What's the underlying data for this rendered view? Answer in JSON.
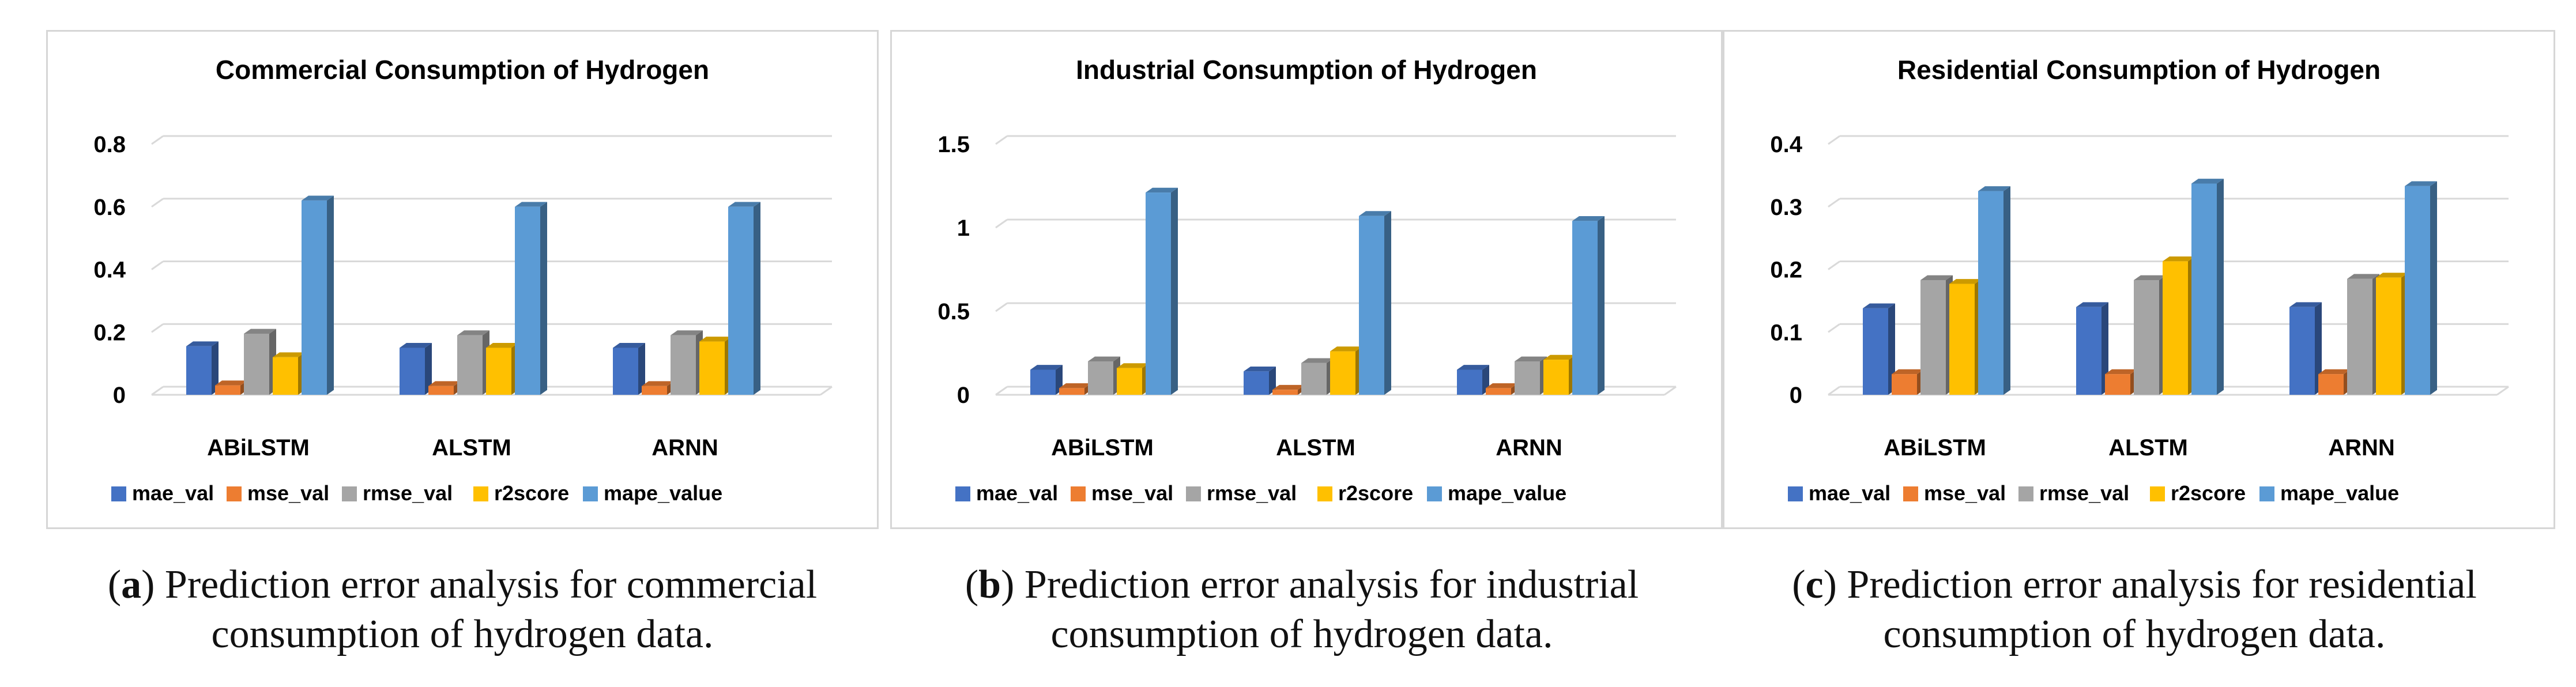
{
  "series_names": [
    "mae_val",
    "mse_val",
    "rmse_val",
    "r2score",
    "mape_value"
  ],
  "series_colors": {
    "mae_val": "#4472C4",
    "mse_val": "#ED7D31",
    "rmse_val": "#A5A5A5",
    "r2score": "#FFC000",
    "mape_value": "#5B9BD5"
  },
  "chart_data": [
    {
      "type": "bar",
      "title": "Commercial Consumption of Hydrogen",
      "categories": [
        "ABiLSTM",
        "ALSTM",
        "ARNN"
      ],
      "yticks": [
        "0",
        "0.2",
        "0.4",
        "0.6",
        "0.8"
      ],
      "ylim": [
        0,
        0.8
      ],
      "series": [
        {
          "name": "mae_val",
          "values": [
            0.155,
            0.15,
            0.15
          ]
        },
        {
          "name": "mse_val",
          "values": [
            0.03,
            0.028,
            0.028
          ]
        },
        {
          "name": "rmse_val",
          "values": [
            0.195,
            0.19,
            0.19
          ]
        },
        {
          "name": "r2score",
          "values": [
            0.12,
            0.15,
            0.17
          ]
        },
        {
          "name": "mape_value",
          "values": [
            0.62,
            0.6,
            0.6
          ]
        }
      ]
    },
    {
      "type": "bar",
      "title": "Industrial Consumption of Hydrogen",
      "categories": [
        "ABiLSTM",
        "ALSTM",
        "ARNN"
      ],
      "yticks": [
        "0",
        "0.5",
        "1",
        "1.5"
      ],
      "ylim": [
        0,
        1.5
      ],
      "series": [
        {
          "name": "mae_val",
          "values": [
            0.15,
            0.14,
            0.15
          ]
        },
        {
          "name": "mse_val",
          "values": [
            0.04,
            0.03,
            0.04
          ]
        },
        {
          "name": "rmse_val",
          "values": [
            0.2,
            0.19,
            0.2
          ]
        },
        {
          "name": "r2score",
          "values": [
            0.16,
            0.26,
            0.21
          ]
        },
        {
          "name": "mape_value",
          "values": [
            1.21,
            1.07,
            1.04
          ]
        }
      ]
    },
    {
      "type": "bar",
      "title": "Residential Consumption of Hydrogen",
      "categories": [
        "ABiLSTM",
        "ALSTM",
        "ARNN"
      ],
      "yticks": [
        "0",
        "0.1",
        "0.2",
        "0.3",
        "0.4"
      ],
      "ylim": [
        0,
        0.4
      ],
      "series": [
        {
          "name": "mae_val",
          "values": [
            0.138,
            0.14,
            0.14
          ]
        },
        {
          "name": "mse_val",
          "values": [
            0.033,
            0.033,
            0.033
          ]
        },
        {
          "name": "rmse_val",
          "values": [
            0.183,
            0.183,
            0.185
          ]
        },
        {
          "name": "r2score",
          "values": [
            0.177,
            0.213,
            0.187
          ]
        },
        {
          "name": "mape_value",
          "values": [
            0.325,
            0.337,
            0.333
          ]
        }
      ]
    }
  ],
  "captions": [
    {
      "label": "a",
      "line1": ") Prediction error analysis for commercial",
      "line2": "consumption of hydrogen data."
    },
    {
      "label": "b",
      "line1": ") Prediction error analysis for industrial",
      "line2": "consumption of hydrogen data."
    },
    {
      "label": "c",
      "line1": ") Prediction error analysis for residential",
      "line2": "consumption of hydrogen data."
    }
  ]
}
